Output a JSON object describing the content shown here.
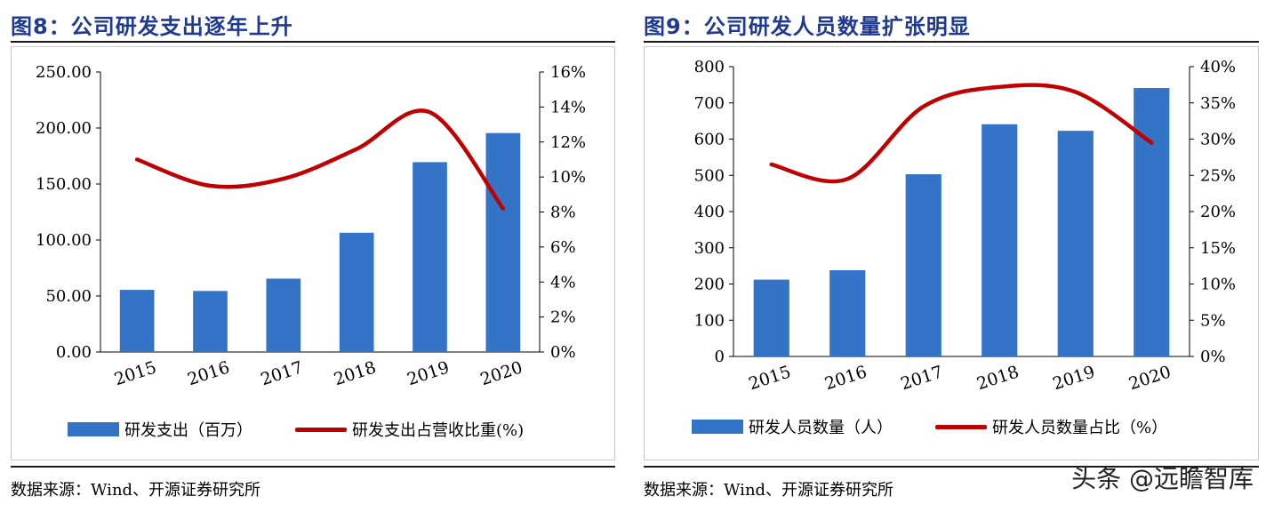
{
  "left": {
    "title": "图8：公司研发支出逐年上升",
    "source": "数据来源：Wind、开源证券研究所",
    "legend_bar": "研发支出（百万）",
    "legend_line": "研发支出占营收比重(%)"
  },
  "right": {
    "title": "图9：公司研发人员数量扩张明显",
    "source": "数据来源：Wind、开源证券研究所",
    "legend_bar": "研发人员数量（人）",
    "legend_line": "研发人员数量占比（%）"
  },
  "watermark": "头条 @远瞻智库",
  "colors": {
    "bar": "#3474c6",
    "line": "#c00000",
    "title": "#1f3a93"
  },
  "chart_data": [
    {
      "type": "bar",
      "categories": [
        "2015",
        "2016",
        "2017",
        "2018",
        "2019",
        "2020"
      ],
      "series": [
        {
          "name": "研发支出（百万）",
          "type": "bar",
          "axis": "left",
          "values": [
            55.5,
            54.5,
            65.5,
            106.5,
            169.5,
            195.5
          ]
        },
        {
          "name": "研发支出占营收比重(%)",
          "type": "line",
          "axis": "right",
          "values": [
            11.0,
            9.5,
            9.9,
            11.6,
            13.7,
            8.2
          ]
        }
      ],
      "y_left": {
        "ylim": [
          0,
          250
        ],
        "ticks": [
          "0.00",
          "50.00",
          "100.00",
          "150.00",
          "200.00",
          "250.00"
        ]
      },
      "y_right": {
        "ylim": [
          0,
          16
        ],
        "ticks": [
          "0%",
          "2%",
          "4%",
          "6%",
          "8%",
          "10%",
          "12%",
          "14%",
          "16%"
        ]
      },
      "grid": false,
      "legend": "bottom"
    },
    {
      "type": "bar",
      "categories": [
        "2015",
        "2016",
        "2017",
        "2018",
        "2019",
        "2020"
      ],
      "series": [
        {
          "name": "研发人员数量（人）",
          "type": "bar",
          "axis": "left",
          "values": [
            212,
            238,
            503,
            641,
            623,
            741
          ]
        },
        {
          "name": "研发人员数量占比（%）",
          "type": "line",
          "axis": "right",
          "values": [
            26.5,
            24.5,
            34.5,
            37.2,
            36.5,
            29.5
          ]
        }
      ],
      "y_left": {
        "ylim": [
          0,
          800
        ],
        "ticks": [
          "0",
          "100",
          "200",
          "300",
          "400",
          "500",
          "600",
          "700",
          "800"
        ]
      },
      "y_right": {
        "ylim": [
          0,
          40
        ],
        "ticks": [
          "0%",
          "5%",
          "10%",
          "15%",
          "20%",
          "25%",
          "30%",
          "35%",
          "40%"
        ]
      },
      "grid": false,
      "legend": "bottom"
    }
  ]
}
